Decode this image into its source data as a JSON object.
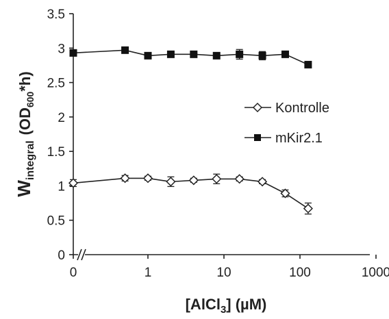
{
  "chart_data": {
    "type": "line",
    "x_scale": "log",
    "x_has_zero": true,
    "x_tick_labels": [
      "0",
      "1",
      "10",
      "100",
      "1000"
    ],
    "y_ticks": [
      0,
      0.5,
      1,
      1.5,
      2,
      2.5,
      3,
      3.5
    ],
    "y_tick_labels": [
      "0",
      "0.5",
      "1",
      "1.5",
      "2",
      "2.5",
      "3",
      "3.5"
    ],
    "ylim": [
      0,
      3.5
    ],
    "xlabel": {
      "pre": "[AlCl",
      "sub": "3",
      "post": "] (µM)"
    },
    "ylabel": {
      "main": "W",
      "sub": "integral",
      "mid": "(OD",
      "sub2": "600",
      "post": "*h)"
    },
    "legend_position": "right",
    "grid": false,
    "series": [
      {
        "name": "Kontrolle",
        "marker": "open-diamond",
        "x": [
          0,
          0.5,
          1,
          2,
          4,
          8,
          16,
          32,
          64,
          128
        ],
        "y": [
          1.04,
          1.11,
          1.11,
          1.06,
          1.08,
          1.1,
          1.1,
          1.06,
          0.89,
          0.67
        ],
        "err": [
          0.05,
          0.04,
          0.03,
          0.07,
          0.03,
          0.07,
          0.03,
          0.03,
          0.05,
          0.08
        ]
      },
      {
        "name": "mKir2.1",
        "marker": "filled-square",
        "x": [
          0,
          0.5,
          1,
          2,
          4,
          8,
          16,
          32,
          64,
          128
        ],
        "y": [
          2.93,
          2.97,
          2.89,
          2.91,
          2.91,
          2.89,
          2.91,
          2.89,
          2.91,
          2.76
        ],
        "err": [
          0.03,
          0.03,
          0.03,
          0.03,
          0.03,
          0.03,
          0.07,
          0.06,
          0.03,
          0.04
        ]
      }
    ]
  }
}
